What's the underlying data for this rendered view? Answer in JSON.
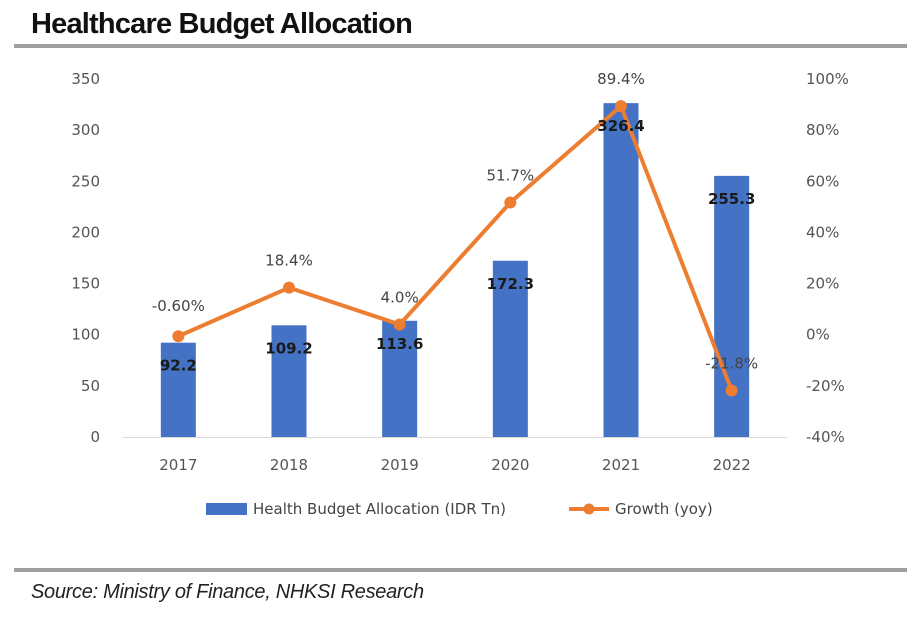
{
  "title": "Healthcare Budget Allocation",
  "source": "Source: Ministry of Finance, NHKSI Research",
  "chart_data": {
    "type": "bar",
    "title": "Healthcare Budget Allocation",
    "categories": [
      "2017",
      "2018",
      "2019",
      "2020",
      "2021",
      "2022"
    ],
    "series": [
      {
        "name": "Health Budget Allocation (IDR Tn)",
        "type": "bar",
        "axis": "left",
        "color": "#4472c4",
        "values": [
          92.2,
          109.2,
          113.6,
          172.3,
          326.4,
          255.3
        ],
        "labels": [
          "92.2",
          "109.2",
          "113.6",
          "172.3",
          "326.4",
          "255.3"
        ]
      },
      {
        "name": "Growth (yoy)",
        "type": "line",
        "axis": "right",
        "color": "#ed7d31",
        "values": [
          -0.6,
          18.4,
          4.0,
          51.7,
          89.4,
          -21.8
        ],
        "labels": [
          "-0.60%",
          "18.4%",
          "4.0%",
          "51.7%",
          "89.4%",
          "-21.8%"
        ]
      }
    ],
    "y_left": {
      "min": 0,
      "max": 350,
      "ticks": [
        0,
        50,
        100,
        150,
        200,
        250,
        300,
        350
      ]
    },
    "y_right": {
      "min": -40,
      "max": 100,
      "ticks": [
        "-40%",
        "-20%",
        "0%",
        "20%",
        "40%",
        "60%",
        "80%",
        "100%"
      ],
      "tick_values": [
        -40,
        -20,
        0,
        20,
        40,
        60,
        80,
        100
      ]
    },
    "grid": false,
    "legend": "bottom"
  }
}
